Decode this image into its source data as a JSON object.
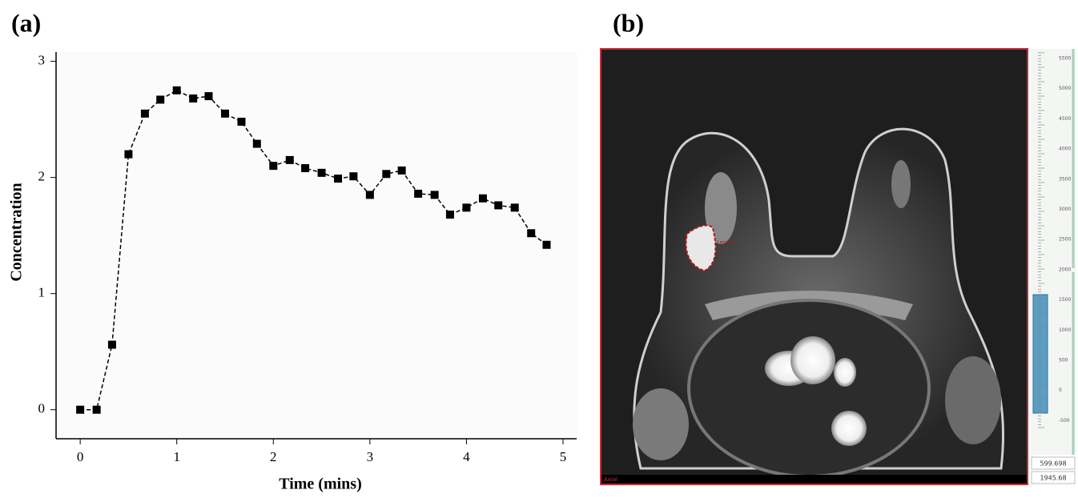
{
  "chart_data": {
    "type": "line",
    "panel_label": "(a)",
    "x_label": "Time (mins)",
    "y_label": "Concentration",
    "x": [
      0,
      0.17,
      0.33,
      0.5,
      0.67,
      0.83,
      1,
      1.17,
      1.33,
      1.5,
      1.67,
      1.83,
      2,
      2.17,
      2.33,
      2.5,
      2.67,
      2.83,
      3,
      3.17,
      3.33,
      3.5,
      3.67,
      3.83,
      4,
      4.17,
      4.33,
      4.5,
      4.67,
      4.83
    ],
    "values": [
      0,
      0,
      0.56,
      2.2,
      2.55,
      2.67,
      2.75,
      2.68,
      2.7,
      2.55,
      2.48,
      2.29,
      2.1,
      2.15,
      2.08,
      2.04,
      1.99,
      2.01,
      1.85,
      2.03,
      2.06,
      1.86,
      1.85,
      1.68,
      1.74,
      1.82,
      1.76,
      1.74,
      1.52,
      1.42
    ],
    "color": "#000000",
    "line_style": "dashed",
    "marker": "square",
    "xlim": [
      -0.25,
      5
    ],
    "ylim": [
      -0.25,
      3.08
    ],
    "xticks": [
      0,
      1,
      2,
      3,
      4,
      5
    ],
    "yticks": [
      0,
      1,
      2,
      3
    ],
    "grid": false
  },
  "image_panel": {
    "panel_label": "(b)",
    "roi_label": "Lesion",
    "view_label": "Axial",
    "scale_ticks": [
      "5500",
      "5000",
      "4500",
      "4000",
      "3500",
      "3000",
      "2500",
      "2000",
      "1500",
      "1000",
      "500",
      "0",
      "-500"
    ],
    "readouts": [
      "599.698",
      "1945.68"
    ]
  }
}
